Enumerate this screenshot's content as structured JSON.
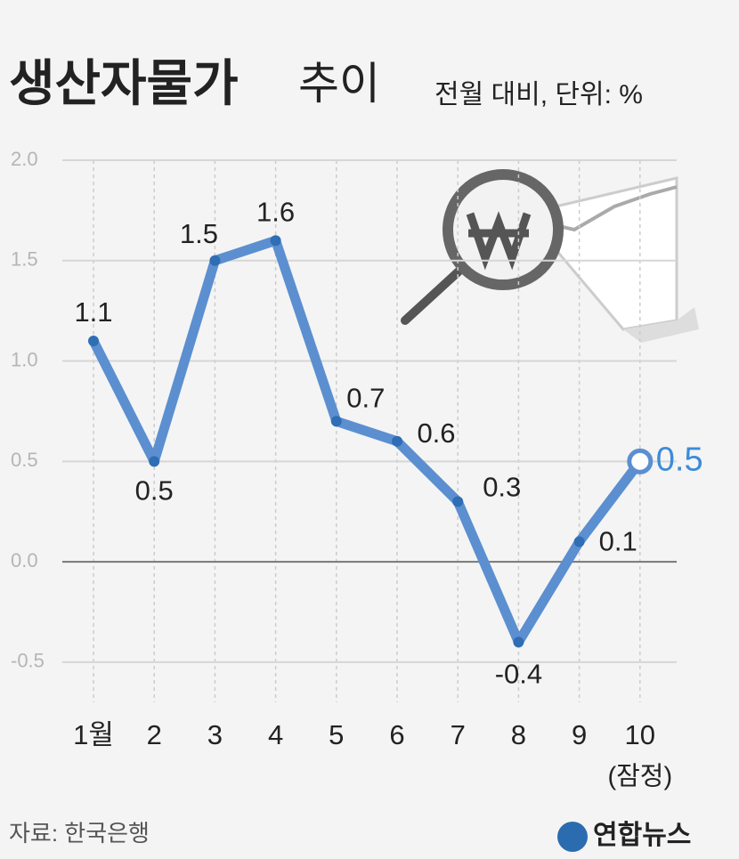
{
  "chart_data": {
    "type": "line",
    "title": "생산자물가",
    "title_rest": "추이",
    "subtitle": "전월 대비, 단위: %",
    "categories": [
      "1월",
      "2",
      "3",
      "4",
      "5",
      "6",
      "7",
      "8",
      "9",
      "10"
    ],
    "x_note": "(잠정)",
    "series": [
      {
        "name": "생산자물가",
        "color": "#5b8fd0",
        "values": [
          1.1,
          0.5,
          1.5,
          1.6,
          0.7,
          0.6,
          0.3,
          -0.4,
          0.1,
          0.5
        ]
      }
    ],
    "ylim": [
      -0.7,
      2.0
    ],
    "yticks": [
      {
        "value": 2.0,
        "label": "2.0"
      },
      {
        "value": 1.5,
        "label": "1.5"
      },
      {
        "value": 1.0,
        "label": "1.0"
      },
      {
        "value": 0.5,
        "label": "0.5"
      },
      {
        "value": 0.0,
        "label": "0.0"
      },
      {
        "value": -0.5,
        "label": "-0.5"
      }
    ],
    "grid": true,
    "source": "자료: 한국은행",
    "logo": "연합뉴스"
  }
}
